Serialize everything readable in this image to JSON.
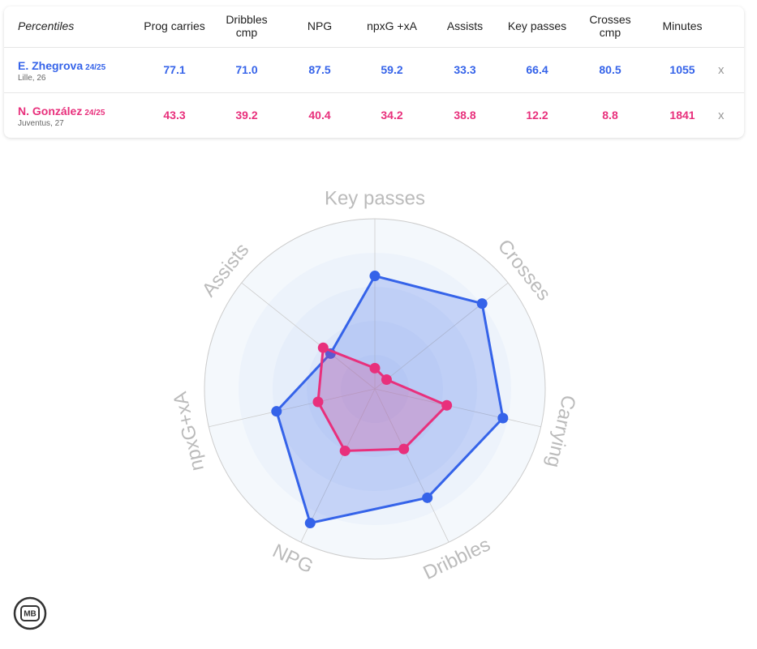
{
  "table": {
    "headers": [
      "Percentiles",
      "Prog carries",
      "Dribbles cmp",
      "NPG",
      "npxG +xA",
      "Assists",
      "Key passes",
      "Crosses cmp",
      "Minutes"
    ],
    "rows": [
      {
        "season": "24/25",
        "meta": "Lille, 26",
        "cells": [
          "77.1",
          "71.0",
          "87.5",
          "59.2",
          "33.3",
          "66.4",
          "80.5",
          "1055"
        ],
        "remove": "x"
      },
      {
        "season": "24/25",
        "meta": "Juventus, 27",
        "cells": [
          "43.3",
          "39.2",
          "40.4",
          "34.2",
          "38.8",
          "12.2",
          "8.8",
          "1841"
        ],
        "remove": "x"
      }
    ]
  },
  "chart_data": {
    "type": "radar",
    "axes": [
      "Key passes",
      "Crosses",
      "Carrying",
      "Dribbles",
      "NPG",
      "npxG+xA",
      "Assists"
    ],
    "rlim": [
      0,
      100
    ],
    "series": [
      {
        "name": "E. Zhegrova",
        "color": "#3563e9",
        "values": [
          66.4,
          80.5,
          77.1,
          71.0,
          87.5,
          59.2,
          33.3
        ]
      },
      {
        "name": "N. González",
        "color": "#e8307c",
        "values": [
          12.2,
          8.8,
          43.3,
          39.2,
          40.4,
          34.2,
          38.8
        ]
      }
    ]
  },
  "logo": "MB"
}
